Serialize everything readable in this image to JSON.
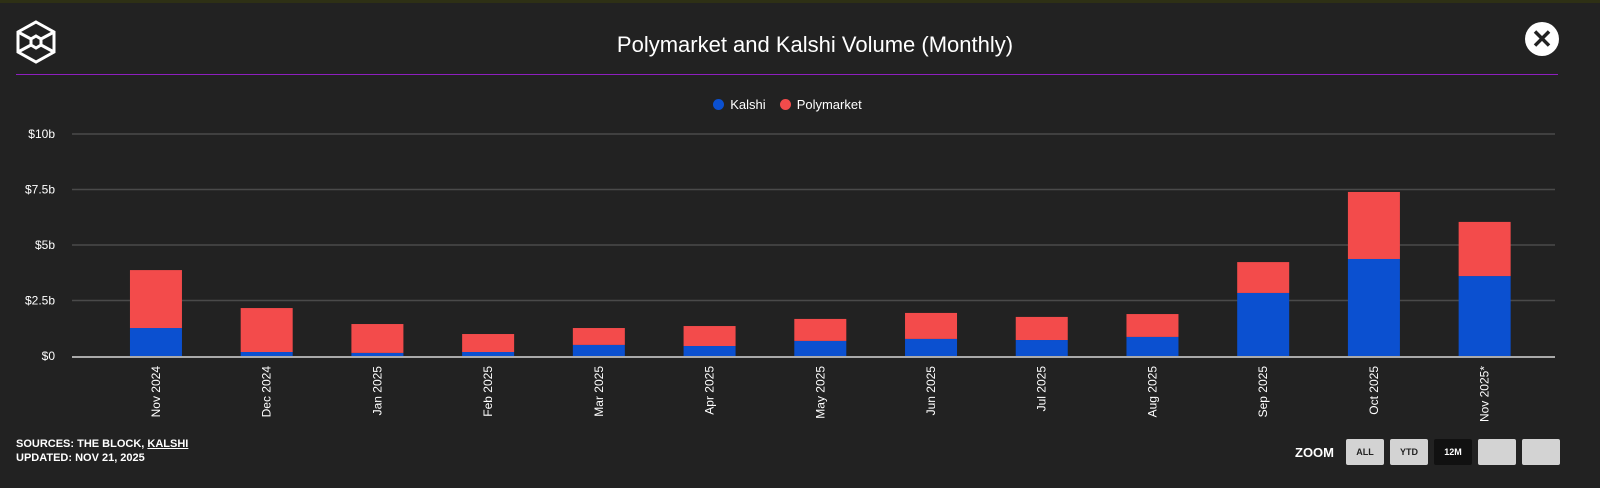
{
  "header": {
    "title": "Polymarket and Kalshi Volume (Monthly)",
    "close_icon": "close-icon",
    "logo": "the-block-logo"
  },
  "footer": {
    "sources_prefix": "SOURCES: THE BLOCK, ",
    "sources_link": "KALSHI",
    "updated": "UPDATED: NOV 21, 2025"
  },
  "zoom": {
    "label": "ZOOM",
    "buttons": [
      "ALL",
      "YTD",
      "12M",
      "",
      ""
    ],
    "active": "12M"
  },
  "colors": {
    "kalshi": "#0b50d0",
    "polymarket": "#f34b4b",
    "accent": "#8e1fbf"
  },
  "chart_data": {
    "type": "bar",
    "stacked": true,
    "title": "Polymarket and Kalshi Volume (Monthly)",
    "xlabel": "",
    "ylabel": "",
    "ylim": [
      0,
      10
    ],
    "yticks": [
      0,
      2.5,
      5,
      7.5,
      10
    ],
    "ytick_labels": [
      "$0",
      "$2.5b",
      "$5b",
      "$7.5b",
      "$10b"
    ],
    "grid": true,
    "legend": "top-center",
    "categories": [
      "Nov 2024",
      "Dec 2024",
      "Jan 2025",
      "Feb 2025",
      "Mar 2025",
      "Apr 2025",
      "May 2025",
      "Jun 2025",
      "Jul 2025",
      "Aug 2025",
      "Sep 2025",
      "Oct 2025",
      "Nov 2025*"
    ],
    "series": [
      {
        "name": "Kalshi",
        "unit": "$b",
        "values": [
          1.26,
          0.18,
          0.14,
          0.18,
          0.5,
          0.45,
          0.68,
          0.77,
          0.72,
          0.86,
          2.84,
          4.37,
          3.6
        ]
      },
      {
        "name": "Polymarket",
        "unit": "$b",
        "values": [
          2.61,
          1.98,
          1.3,
          0.81,
          0.76,
          0.9,
          0.99,
          1.17,
          1.04,
          1.03,
          1.39,
          3.02,
          2.44
        ]
      }
    ]
  }
}
